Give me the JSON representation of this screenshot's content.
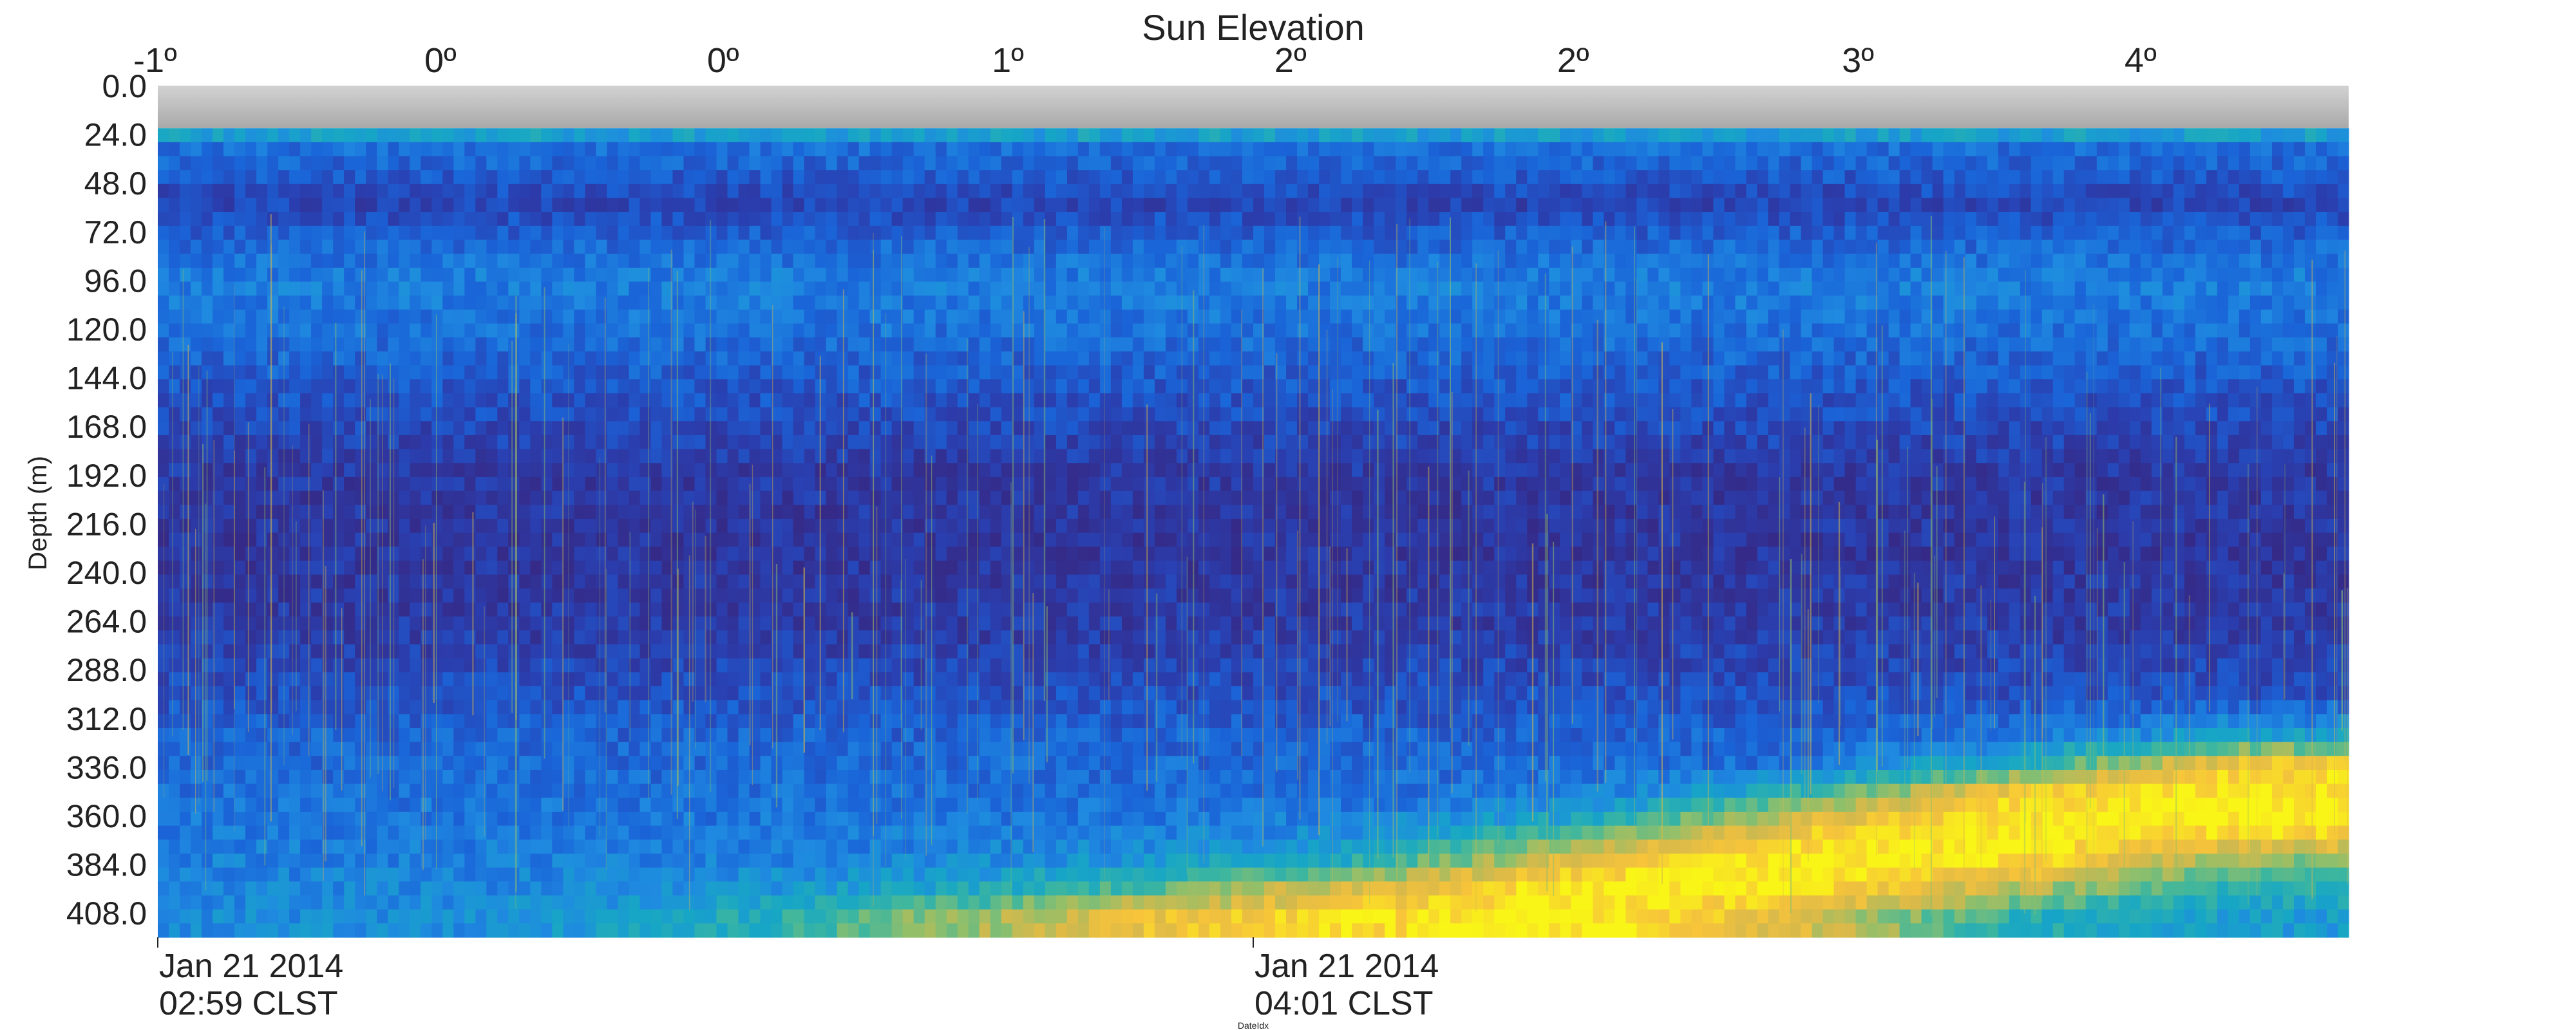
{
  "figure": {
    "top_axis_title": "Sun Elevation",
    "y_axis_label": "Depth (m)",
    "x_axis_label": "DateIdx"
  },
  "chart_data": {
    "type": "heatmap",
    "title": "Sun Elevation",
    "ylabel": "Depth (m)",
    "xlabel": "DateIdx",
    "ylim": [
      0,
      420
    ],
    "y_inverted": true,
    "y_ticks": [
      {
        "value": 0,
        "label": "0.0"
      },
      {
        "value": 24,
        "label": "24.0"
      },
      {
        "value": 48,
        "label": "48.0"
      },
      {
        "value": 72,
        "label": "72.0"
      },
      {
        "value": 96,
        "label": "96.0"
      },
      {
        "value": 120,
        "label": "120.0"
      },
      {
        "value": 144,
        "label": "144.0"
      },
      {
        "value": 168,
        "label": "168.0"
      },
      {
        "value": 192,
        "label": "192.0"
      },
      {
        "value": 216,
        "label": "216.0"
      },
      {
        "value": 240,
        "label": "240.0"
      },
      {
        "value": 264,
        "label": "264.0"
      },
      {
        "value": 288,
        "label": "288.0"
      },
      {
        "value": 312,
        "label": "312.0"
      },
      {
        "value": 336,
        "label": "336.0"
      },
      {
        "value": 360,
        "label": "360.0"
      },
      {
        "value": 384,
        "label": "384.0"
      },
      {
        "value": 408,
        "label": "408.0"
      }
    ],
    "x_range_fraction": [
      0,
      1
    ],
    "top_ticks": [
      {
        "x": 0.0,
        "label": "-1º"
      },
      {
        "x": 0.129,
        "label": "0º"
      },
      {
        "x": 0.258,
        "label": "0º"
      },
      {
        "x": 0.388,
        "label": "1º"
      },
      {
        "x": 0.517,
        "label": "2º"
      },
      {
        "x": 0.646,
        "label": "2º"
      },
      {
        "x": 0.776,
        "label": "3º"
      },
      {
        "x": 0.905,
        "label": "4º"
      }
    ],
    "bottom_ticks": [
      {
        "x": 0.0,
        "line1": "Jan 21 2014",
        "line2": "02:59 CLST"
      },
      {
        "x": 0.5,
        "line1": "Jan 21 2014",
        "line2": "04:01 CLST"
      }
    ],
    "no_data_band_depth": [
      0,
      21
    ],
    "colormap": [
      "#352a87",
      "#2a3fb0",
      "#1a64d8",
      "#1f8ae0",
      "#17a6c6",
      "#3db69f",
      "#8fbf6b",
      "#d8b94a",
      "#f7c43a",
      "#f9f517"
    ],
    "no_data_color": "#a9a9a9",
    "grid": false,
    "intensity_grid": {
      "depth_row_centers": [
        23,
        31,
        43,
        58,
        76,
        96,
        120,
        150,
        190,
        230,
        270,
        300,
        320,
        335,
        350,
        365,
        380,
        395,
        410
      ],
      "time_column_centers": [
        0.05,
        0.15,
        0.25,
        0.35,
        0.45,
        0.55,
        0.65,
        0.75,
        0.85,
        0.95
      ],
      "values": [
        [
          0.45,
          0.45,
          0.45,
          0.45,
          0.45,
          0.45,
          0.45,
          0.45,
          0.45,
          0.45
        ],
        [
          0.25,
          0.25,
          0.25,
          0.25,
          0.25,
          0.25,
          0.25,
          0.25,
          0.25,
          0.25
        ],
        [
          0.2,
          0.2,
          0.2,
          0.2,
          0.2,
          0.2,
          0.2,
          0.2,
          0.2,
          0.2
        ],
        [
          0.12,
          0.12,
          0.12,
          0.12,
          0.12,
          0.12,
          0.12,
          0.12,
          0.12,
          0.12
        ],
        [
          0.22,
          0.22,
          0.22,
          0.22,
          0.22,
          0.22,
          0.22,
          0.22,
          0.22,
          0.22
        ],
        [
          0.3,
          0.3,
          0.3,
          0.3,
          0.3,
          0.3,
          0.3,
          0.3,
          0.3,
          0.3
        ],
        [
          0.26,
          0.26,
          0.26,
          0.26,
          0.26,
          0.26,
          0.26,
          0.26,
          0.26,
          0.26
        ],
        [
          0.18,
          0.18,
          0.18,
          0.18,
          0.18,
          0.18,
          0.18,
          0.18,
          0.18,
          0.18
        ],
        [
          0.08,
          0.08,
          0.08,
          0.08,
          0.08,
          0.08,
          0.08,
          0.08,
          0.08,
          0.08
        ],
        [
          0.06,
          0.06,
          0.06,
          0.06,
          0.06,
          0.06,
          0.06,
          0.06,
          0.06,
          0.06
        ],
        [
          0.09,
          0.09,
          0.09,
          0.09,
          0.09,
          0.09,
          0.09,
          0.09,
          0.09,
          0.09
        ],
        [
          0.16,
          0.16,
          0.16,
          0.16,
          0.16,
          0.16,
          0.16,
          0.16,
          0.16,
          0.16
        ],
        [
          0.22,
          0.22,
          0.22,
          0.22,
          0.22,
          0.22,
          0.22,
          0.22,
          0.27,
          0.4
        ],
        [
          0.24,
          0.24,
          0.24,
          0.24,
          0.24,
          0.24,
          0.24,
          0.26,
          0.5,
          0.9
        ],
        [
          0.26,
          0.26,
          0.26,
          0.26,
          0.26,
          0.26,
          0.3,
          0.55,
          0.95,
          1.0
        ],
        [
          0.28,
          0.28,
          0.28,
          0.28,
          0.29,
          0.32,
          0.5,
          0.85,
          1.0,
          1.0
        ],
        [
          0.3,
          0.3,
          0.3,
          0.32,
          0.36,
          0.45,
          0.8,
          1.0,
          1.0,
          0.7
        ],
        [
          0.32,
          0.32,
          0.35,
          0.42,
          0.55,
          0.8,
          1.0,
          1.0,
          0.75,
          0.5
        ],
        [
          0.34,
          0.36,
          0.45,
          0.65,
          0.85,
          0.95,
          1.0,
          0.8,
          0.5,
          0.4
        ]
      ]
    }
  }
}
